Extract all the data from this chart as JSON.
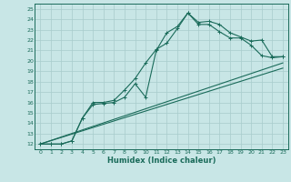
{
  "xlabel": "Humidex (Indice chaleur)",
  "xlim": [
    -0.5,
    23.5
  ],
  "ylim": [
    11.5,
    25.5
  ],
  "xticks": [
    0,
    1,
    2,
    3,
    4,
    5,
    6,
    7,
    8,
    9,
    10,
    11,
    12,
    13,
    14,
    15,
    16,
    17,
    18,
    19,
    20,
    21,
    22,
    23
  ],
  "yticks": [
    12,
    13,
    14,
    15,
    16,
    17,
    18,
    19,
    20,
    21,
    22,
    23,
    24,
    25
  ],
  "bg_color": "#c8e6e6",
  "line_color": "#1a6b5a",
  "grid_color": "#a8cccc",
  "line1_x": [
    0,
    1,
    2,
    3,
    4,
    5,
    6,
    7,
    8,
    9,
    10,
    11,
    12,
    13,
    14,
    15,
    16,
    17,
    18,
    19,
    20,
    21,
    22,
    23
  ],
  "line1_y": [
    12,
    12,
    12,
    12.3,
    14.5,
    16.0,
    16.0,
    16.2,
    17.2,
    18.3,
    19.8,
    21.1,
    21.7,
    23.1,
    24.6,
    23.7,
    23.8,
    23.5,
    22.7,
    22.3,
    21.9,
    22.0,
    20.4,
    20.4
  ],
  "line2_x": [
    0,
    1,
    2,
    3,
    4,
    5,
    6,
    7,
    8,
    9,
    10,
    11,
    12,
    13,
    14,
    15,
    16,
    17,
    18,
    19,
    20,
    21,
    22,
    23
  ],
  "line2_y": [
    12,
    12,
    12,
    12.3,
    14.5,
    15.8,
    15.9,
    16.0,
    16.5,
    17.8,
    16.5,
    21.0,
    22.7,
    23.3,
    24.6,
    23.5,
    23.5,
    22.8,
    22.2,
    22.2,
    21.5,
    20.5,
    20.3,
    20.4
  ],
  "line3_x": [
    0,
    23
  ],
  "line3_y": [
    12,
    19.8
  ],
  "line4_x": [
    0,
    23
  ],
  "line4_y": [
    12,
    19.3
  ]
}
